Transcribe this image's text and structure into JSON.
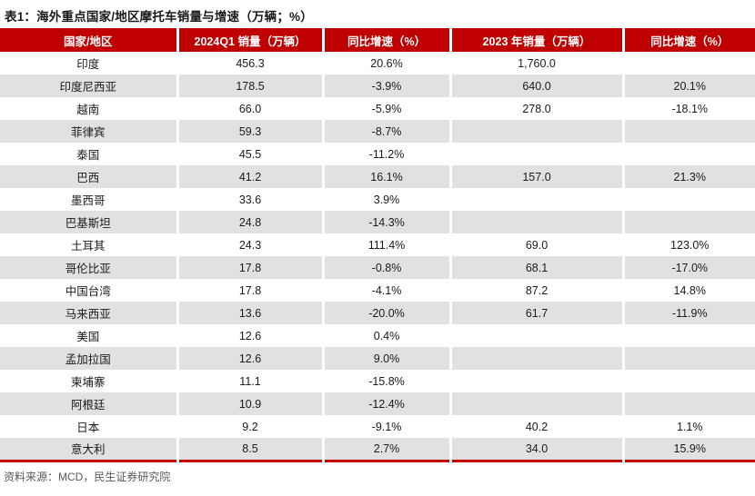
{
  "page": {
    "title": "表1：海外重点国家/地区摩托车销量与增速（万辆；%）",
    "source": "资料来源：MCD，民生证券研究院"
  },
  "colors": {
    "header_bg": "#c00000",
    "bottom_border": "#c00000",
    "row_stripe": "#e2e1e1",
    "body_text": "#1a1a1a",
    "source_text": "#595959"
  },
  "table": {
    "columns": [
      "国家/地区",
      "2024Q1 销量（万辆）",
      "同比增速（%）",
      "2023 年销量（万辆）",
      "同比增速（%）"
    ],
    "rows": [
      [
        "印度",
        "456.3",
        "20.6%",
        "1,760.0",
        ""
      ],
      [
        "印度尼西亚",
        "178.5",
        "-3.9%",
        "640.0",
        "20.1%"
      ],
      [
        "越南",
        "66.0",
        "-5.9%",
        "278.0",
        "-18.1%"
      ],
      [
        "菲律宾",
        "59.3",
        "-8.7%",
        "",
        ""
      ],
      [
        "泰国",
        "45.5",
        "-11.2%",
        "",
        ""
      ],
      [
        "巴西",
        "41.2",
        "16.1%",
        "157.0",
        "21.3%"
      ],
      [
        "墨西哥",
        "33.6",
        "3.9%",
        "",
        ""
      ],
      [
        "巴基斯坦",
        "24.8",
        "-14.3%",
        "",
        ""
      ],
      [
        "土耳其",
        "24.3",
        "111.4%",
        "69.0",
        "123.0%"
      ],
      [
        "哥伦比亚",
        "17.8",
        "-0.8%",
        "68.1",
        "-17.0%"
      ],
      [
        "中国台湾",
        "17.8",
        "-4.1%",
        "87.2",
        "14.8%"
      ],
      [
        "马来西亚",
        "13.6",
        "-20.0%",
        "61.7",
        "-11.9%"
      ],
      [
        "美国",
        "12.6",
        "0.4%",
        "",
        ""
      ],
      [
        "孟加拉国",
        "12.6",
        "9.0%",
        "",
        ""
      ],
      [
        "柬埔寨",
        "11.1",
        "-15.8%",
        "",
        ""
      ],
      [
        "阿根廷",
        "10.9",
        "-12.4%",
        "",
        ""
      ],
      [
        "日本",
        "9.2",
        "-9.1%",
        "40.2",
        "1.1%"
      ],
      [
        "意大利",
        "8.5",
        "2.7%",
        "34.0",
        "15.9%"
      ]
    ]
  }
}
